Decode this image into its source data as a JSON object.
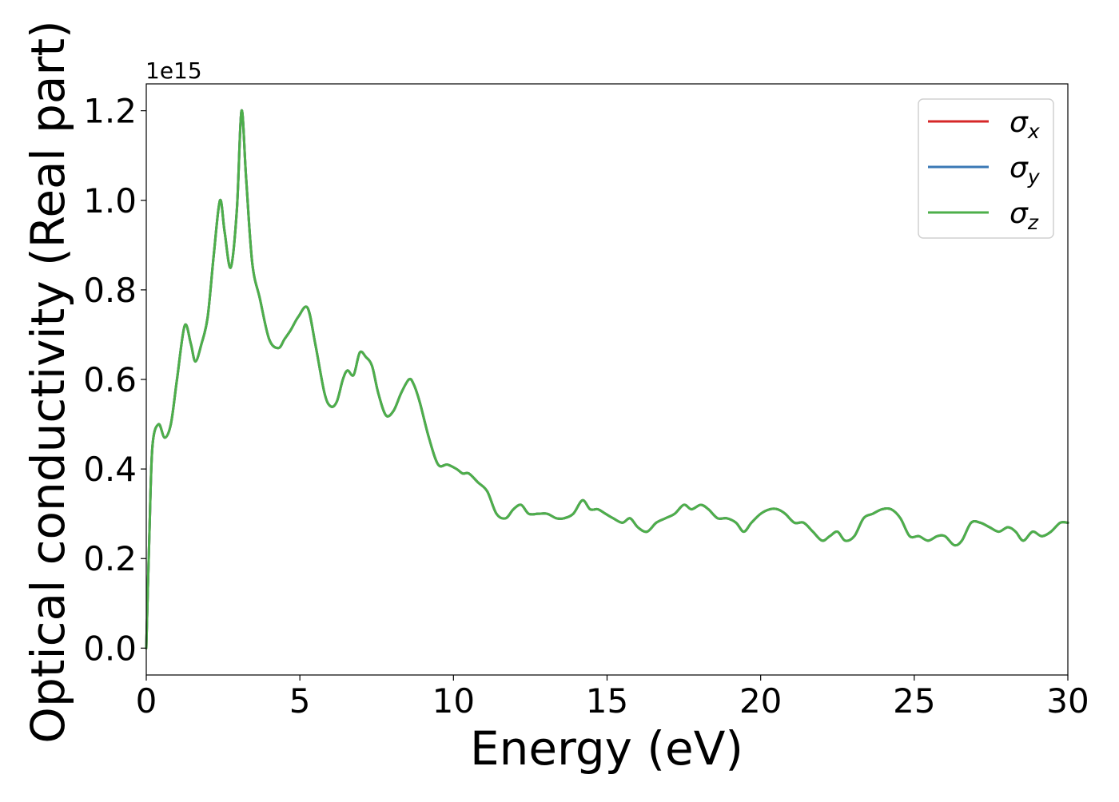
{
  "chart_data": {
    "type": "line",
    "title": "",
    "xlabel": "Energy (eV)",
    "ylabel": "Optical conductivity (Real part)",
    "offset_text": "1e15",
    "xlim": [
      0,
      30
    ],
    "ylim": [
      -0.06,
      1.26
    ],
    "y_scale_factor": 1000000000000000.0,
    "xticks": [
      0,
      5,
      10,
      15,
      20,
      25,
      30
    ],
    "xtick_labels": [
      "0",
      "5",
      "10",
      "15",
      "20",
      "25",
      "30"
    ],
    "yticks": [
      0.0,
      0.2,
      0.4,
      0.6,
      0.8,
      1.0,
      1.2
    ],
    "ytick_labels": [
      "0.0",
      "0.2",
      "0.4",
      "0.6",
      "0.8",
      "1.0",
      "1.2"
    ],
    "grid": false,
    "legend_position": "upper right",
    "x": [
      0,
      0.1,
      0.2,
      0.4,
      0.6,
      0.8,
      1.0,
      1.25,
      1.45,
      1.6,
      1.8,
      2.0,
      2.2,
      2.4,
      2.55,
      2.75,
      2.95,
      3.1,
      3.25,
      3.45,
      3.7,
      4.0,
      4.3,
      4.5,
      4.7,
      4.95,
      5.25,
      5.5,
      5.8,
      6.0,
      6.2,
      6.4,
      6.55,
      6.75,
      6.95,
      7.15,
      7.35,
      7.55,
      7.8,
      8.05,
      8.3,
      8.55,
      8.7,
      8.9,
      9.2,
      9.5,
      9.8,
      10.1,
      10.3,
      10.5,
      10.8,
      11.1,
      11.4,
      11.7,
      11.95,
      12.2,
      12.45,
      12.75,
      13.05,
      13.35,
      13.6,
      13.9,
      14.2,
      14.45,
      14.7,
      14.95,
      15.2,
      15.5,
      15.75,
      16.0,
      16.3,
      16.6,
      16.9,
      17.2,
      17.5,
      17.75,
      18.05,
      18.3,
      18.6,
      18.9,
      19.2,
      19.45,
      19.7,
      20.0,
      20.3,
      20.55,
      20.8,
      21.1,
      21.4,
      21.7,
      22.0,
      22.25,
      22.5,
      22.75,
      23.05,
      23.35,
      23.65,
      23.95,
      24.25,
      24.55,
      24.85,
      25.15,
      25.45,
      25.75,
      26.0,
      26.3,
      26.55,
      26.85,
      27.15,
      27.45,
      27.75,
      28.05,
      28.3,
      28.55,
      28.85,
      29.15,
      29.45,
      29.75,
      30.0
    ],
    "series": [
      {
        "name": "σx",
        "label_base": "σ",
        "label_sub": "x",
        "color": "#d62728",
        "y": [
          0.0,
          0.25,
          0.45,
          0.5,
          0.47,
          0.5,
          0.6,
          0.72,
          0.68,
          0.64,
          0.68,
          0.74,
          0.88,
          1.0,
          0.93,
          0.85,
          0.98,
          1.2,
          1.05,
          0.86,
          0.78,
          0.69,
          0.67,
          0.69,
          0.71,
          0.74,
          0.76,
          0.68,
          0.57,
          0.54,
          0.55,
          0.6,
          0.62,
          0.61,
          0.66,
          0.65,
          0.63,
          0.57,
          0.52,
          0.53,
          0.57,
          0.6,
          0.59,
          0.55,
          0.47,
          0.41,
          0.41,
          0.4,
          0.39,
          0.39,
          0.37,
          0.35,
          0.3,
          0.29,
          0.31,
          0.32,
          0.3,
          0.3,
          0.3,
          0.29,
          0.29,
          0.3,
          0.33,
          0.31,
          0.31,
          0.3,
          0.29,
          0.28,
          0.29,
          0.27,
          0.26,
          0.28,
          0.29,
          0.3,
          0.32,
          0.31,
          0.32,
          0.31,
          0.29,
          0.29,
          0.28,
          0.26,
          0.28,
          0.3,
          0.31,
          0.31,
          0.3,
          0.28,
          0.28,
          0.26,
          0.24,
          0.25,
          0.26,
          0.24,
          0.25,
          0.29,
          0.3,
          0.31,
          0.31,
          0.29,
          0.25,
          0.25,
          0.24,
          0.25,
          0.25,
          0.23,
          0.24,
          0.28,
          0.28,
          0.27,
          0.26,
          0.27,
          0.26,
          0.24,
          0.26,
          0.25,
          0.26,
          0.28,
          0.28
        ]
      },
      {
        "name": "σy",
        "label_base": "σ",
        "label_sub": "y",
        "color": "#3a78b5",
        "y": [
          0.0,
          0.25,
          0.45,
          0.5,
          0.47,
          0.5,
          0.6,
          0.72,
          0.68,
          0.64,
          0.68,
          0.74,
          0.88,
          1.0,
          0.93,
          0.85,
          0.98,
          1.2,
          1.05,
          0.86,
          0.78,
          0.69,
          0.67,
          0.69,
          0.71,
          0.74,
          0.76,
          0.68,
          0.57,
          0.54,
          0.55,
          0.6,
          0.62,
          0.61,
          0.66,
          0.65,
          0.63,
          0.57,
          0.52,
          0.53,
          0.57,
          0.6,
          0.59,
          0.55,
          0.47,
          0.41,
          0.41,
          0.4,
          0.39,
          0.39,
          0.37,
          0.35,
          0.3,
          0.29,
          0.31,
          0.32,
          0.3,
          0.3,
          0.3,
          0.29,
          0.29,
          0.3,
          0.33,
          0.31,
          0.31,
          0.3,
          0.29,
          0.28,
          0.29,
          0.27,
          0.26,
          0.28,
          0.29,
          0.3,
          0.32,
          0.31,
          0.32,
          0.31,
          0.29,
          0.29,
          0.28,
          0.26,
          0.28,
          0.3,
          0.31,
          0.31,
          0.3,
          0.28,
          0.28,
          0.26,
          0.24,
          0.25,
          0.26,
          0.24,
          0.25,
          0.29,
          0.3,
          0.31,
          0.31,
          0.29,
          0.25,
          0.25,
          0.24,
          0.25,
          0.25,
          0.23,
          0.24,
          0.28,
          0.28,
          0.27,
          0.26,
          0.27,
          0.26,
          0.24,
          0.26,
          0.25,
          0.26,
          0.28,
          0.28
        ]
      },
      {
        "name": "σz",
        "label_base": "σ",
        "label_sub": "z",
        "color": "#4daf4a",
        "y": [
          0.0,
          0.25,
          0.45,
          0.5,
          0.47,
          0.5,
          0.6,
          0.72,
          0.68,
          0.64,
          0.68,
          0.74,
          0.88,
          1.0,
          0.93,
          0.85,
          0.98,
          1.2,
          1.05,
          0.86,
          0.78,
          0.69,
          0.67,
          0.69,
          0.71,
          0.74,
          0.76,
          0.68,
          0.57,
          0.54,
          0.55,
          0.6,
          0.62,
          0.61,
          0.66,
          0.65,
          0.63,
          0.57,
          0.52,
          0.53,
          0.57,
          0.6,
          0.59,
          0.55,
          0.47,
          0.41,
          0.41,
          0.4,
          0.39,
          0.39,
          0.37,
          0.35,
          0.3,
          0.29,
          0.31,
          0.32,
          0.3,
          0.3,
          0.3,
          0.29,
          0.29,
          0.3,
          0.33,
          0.31,
          0.31,
          0.3,
          0.29,
          0.28,
          0.29,
          0.27,
          0.26,
          0.28,
          0.29,
          0.3,
          0.32,
          0.31,
          0.32,
          0.31,
          0.29,
          0.29,
          0.28,
          0.26,
          0.28,
          0.3,
          0.31,
          0.31,
          0.3,
          0.28,
          0.28,
          0.26,
          0.24,
          0.25,
          0.26,
          0.24,
          0.25,
          0.29,
          0.3,
          0.31,
          0.31,
          0.29,
          0.25,
          0.25,
          0.24,
          0.25,
          0.25,
          0.23,
          0.24,
          0.28,
          0.28,
          0.27,
          0.26,
          0.27,
          0.26,
          0.24,
          0.26,
          0.25,
          0.26,
          0.28,
          0.28
        ]
      }
    ]
  }
}
